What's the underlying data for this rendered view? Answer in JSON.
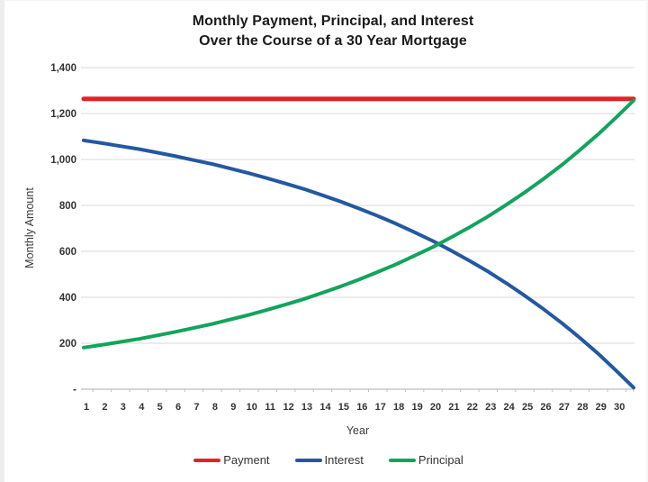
{
  "chart": {
    "title_line1": "Monthly Payment, Principal, and Interest",
    "title_line2": "Over the Course of a 30 Year Mortgage",
    "xlabel": "Year",
    "ylabel": "Monthly Amount"
  },
  "legend": {
    "items": [
      {
        "label": "Payment",
        "color": "#e02427"
      },
      {
        "label": "Interest",
        "color": "#2458a0"
      },
      {
        "label": "Principal",
        "color": "#12a45c"
      }
    ]
  },
  "colors": {
    "gridline": "#d9d9d9",
    "axis_line": "#bfbfbf",
    "tick_text": "#333333"
  },
  "chart_data": {
    "type": "line",
    "title": "Monthly Payment, Principal, and Interest Over the Course of a 30 Year Mortgage",
    "xlabel": "Year",
    "ylabel": "Monthly Amount",
    "grid": true,
    "legend_position": "bottom",
    "ylim": [
      0,
      1400
    ],
    "yticks": [
      0,
      200,
      400,
      600,
      800,
      1000,
      1200,
      1400
    ],
    "ytick_labels": [
      "-",
      "200",
      "400",
      "600",
      "800",
      "1,000",
      "1,200",
      "1,400"
    ],
    "xtick_labels": [
      "1",
      "2",
      "3",
      "4",
      "5",
      "6",
      "7",
      "8",
      "9",
      "10",
      "11",
      "12",
      "13",
      "14",
      "15",
      "16",
      "17",
      "18",
      "19",
      "20",
      "21",
      "22",
      "23",
      "24",
      "25",
      "26",
      "27",
      "28",
      "29",
      "30"
    ],
    "x": [
      1,
      2,
      3,
      4,
      5,
      6,
      7,
      8,
      9,
      10,
      11,
      12,
      13,
      14,
      15,
      16,
      17,
      18,
      19,
      20,
      21,
      22,
      23,
      24,
      25,
      26,
      27,
      28,
      29,
      30,
      30.92
    ],
    "series": [
      {
        "name": "Payment",
        "color": "#e02427",
        "width": 5,
        "values": [
          1264,
          1264,
          1264,
          1264,
          1264,
          1264,
          1264,
          1264,
          1264,
          1264,
          1264,
          1264,
          1264,
          1264,
          1264,
          1264,
          1264,
          1264,
          1264,
          1264,
          1264,
          1264,
          1264,
          1264,
          1264,
          1264,
          1264,
          1264,
          1264,
          1264,
          1264
        ]
      },
      {
        "name": "Interest",
        "color": "#2458a0",
        "width": 4,
        "values": [
          1083,
          1071,
          1058,
          1045,
          1030,
          1014,
          997,
          980,
          960,
          940,
          918,
          895,
          871,
          844,
          816,
          786,
          754,
          720,
          683,
          645,
          603,
          559,
          512,
          461,
          407,
          350,
          289,
          223,
          154,
          79,
          7
        ]
      },
      {
        "name": "Principal",
        "color": "#12a45c",
        "width": 4,
        "values": [
          181,
          193,
          206,
          219,
          234,
          250,
          267,
          284,
          304,
          324,
          346,
          369,
          393,
          420,
          448,
          478,
          510,
          544,
          581,
          619,
          661,
          705,
          752,
          803,
          857,
          914,
          975,
          1041,
          1110,
          1185,
          1257
        ]
      }
    ]
  }
}
